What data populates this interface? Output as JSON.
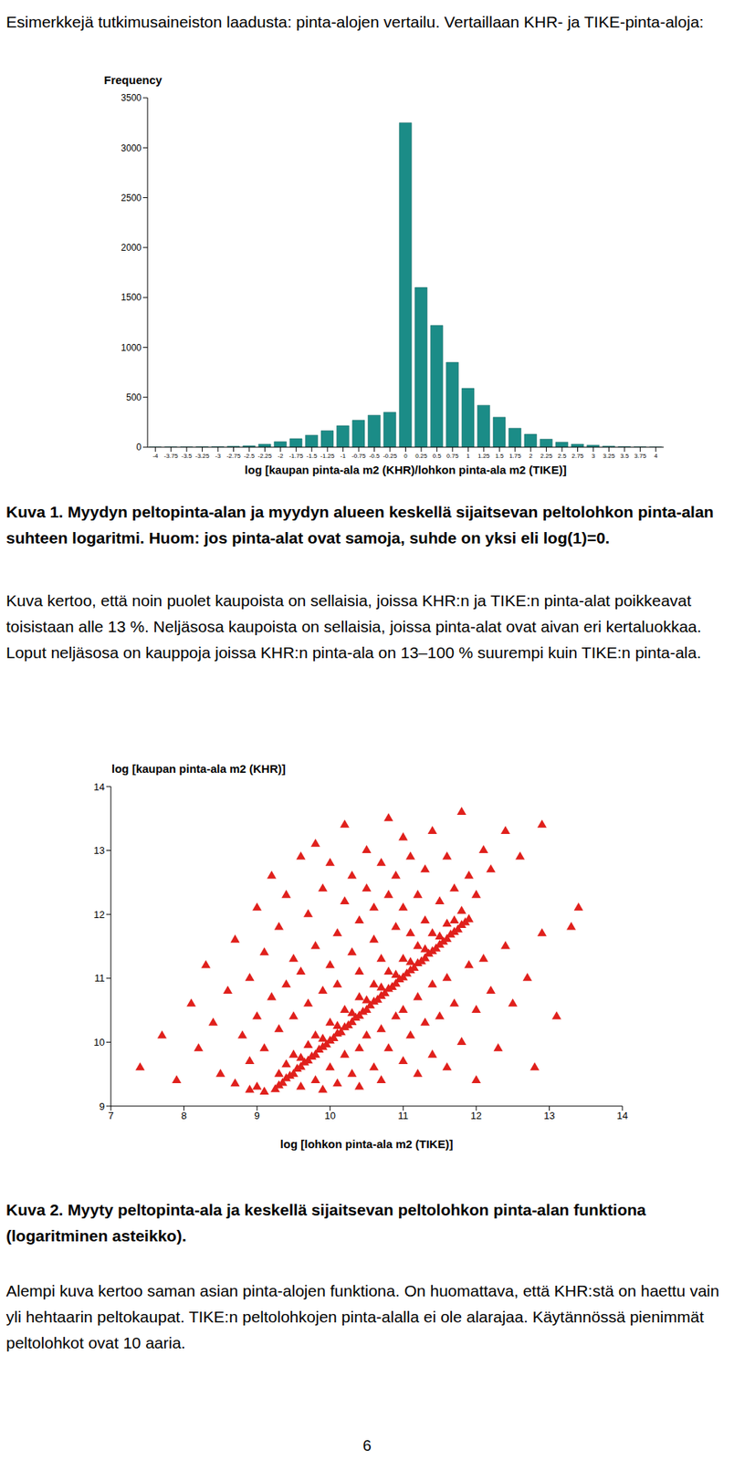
{
  "document": {
    "intro": "Esimerkkejä tutkimusaineiston laadusta: pinta-alojen vertailu. Vertaillaan KHR- ja TIKE-pinta-aloja:",
    "caption_1": "Kuva 1. Myydyn peltopinta-alan ja myydyn alueen keskellä sijaitsevan peltolohkon pinta-alan suhteen logaritmi. Huom: jos pinta-alat ovat samoja, suhde on yksi eli log(1)=0.",
    "paragraph_1": "Kuva kertoo, että noin puolet kaupoista on sellaisia, joissa KHR:n ja TIKE:n pinta-alat poikkeavat toisistaan alle 13 %. Neljäsosa kaupoista on sellaisia, joissa pinta-alat ovat aivan eri kertaluokkaa. Loput neljäsosa on kauppoja joissa KHR:n pinta-ala on 13–100 % suurempi kuin TIKE:n pinta-ala.",
    "caption_2": "Kuva 2. Myyty peltopinta-ala ja keskellä sijaitsevan peltolohkon pinta-alan funktiona (logaritminen asteikko).",
    "paragraph_2": "Alempi kuva kertoo saman asian pinta-alojen funktiona. On huomattava, että KHR:stä on haettu vain yli hehtaarin peltokaupat. TIKE:n peltolohkojen pinta-alalla ei ole alarajaa. Käytännössä pienimmät peltolohkot ovat 10 aaria.",
    "page_number": 6
  },
  "chart_data": [
    {
      "type": "histogram",
      "y_label": "Frequency",
      "x_label": "log [kaupan pinta-ala m2 (KHR)/lohkon pinta-ala m2 (TIKE)]",
      "bins": [
        -4.125,
        -3.875,
        -3.625,
        -3.375,
        -3.125,
        -2.875,
        -2.625,
        -2.375,
        -2.125,
        -1.875,
        -1.625,
        -1.375,
        -1.125,
        -0.875,
        -0.625,
        -0.375,
        -0.125,
        0.125,
        0.375,
        0.625,
        0.875,
        1.125,
        1.375,
        1.625,
        1.875,
        2.125,
        2.375,
        2.625,
        2.875,
        3.125,
        3.375,
        3.625,
        3.875,
        4.125
      ],
      "counts": [
        1,
        2,
        2,
        4,
        5,
        9,
        14,
        30,
        55,
        85,
        120,
        165,
        215,
        270,
        320,
        350,
        3250,
        1600,
        1220,
        850,
        590,
        420,
        300,
        190,
        130,
        80,
        50,
        30,
        20,
        10,
        6,
        3,
        1
      ],
      "color": "#1b8c87",
      "xlim": [
        -4.125,
        4.125
      ],
      "xticks": [
        -4,
        -3.75,
        -3.5,
        -3.25,
        -3,
        -2.75,
        -2.5,
        -2.25,
        -2,
        -1.75,
        -1.5,
        -1.25,
        -1,
        -0.75,
        -0.5,
        -0.25,
        0,
        0.25,
        0.5,
        0.75,
        1,
        1.25,
        1.5,
        1.75,
        2,
        2.25,
        2.5,
        2.75,
        3,
        3.25,
        3.5,
        3.75,
        4
      ],
      "ylim": [
        0,
        3500
      ],
      "yticks": [
        0,
        500,
        1000,
        1500,
        2000,
        2500,
        3000,
        3500
      ]
    },
    {
      "type": "scatter",
      "y_label": "log [kaupan pinta-ala m2 (KHR)]",
      "x_label": "log [lohkon pinta-ala m2 (TIKE)]",
      "color": "#e0201c",
      "marker": "triangle",
      "x": [
        9.25,
        9.3,
        9.35,
        9.4,
        9.45,
        9.5,
        9.55,
        9.6,
        9.65,
        9.7,
        9.75,
        9.8,
        9.85,
        9.9,
        9.95,
        10,
        10.05,
        10.1,
        10.15,
        10.2,
        10.25,
        10.3,
        10.35,
        10.4,
        10.45,
        10.5,
        10.55,
        10.6,
        10.65,
        10.7,
        10.75,
        10.8,
        10.85,
        10.9,
        10.95,
        11,
        11.05,
        11.1,
        11.15,
        11.2,
        11.25,
        11.3,
        11.35,
        11.4,
        11.45,
        11.5,
        11.55,
        11.6,
        11.65,
        11.7,
        11.75,
        11.8,
        11.85,
        11.9,
        9.3,
        9.4,
        9.5,
        9.6,
        9.7,
        9.8,
        9.9,
        10,
        10.1,
        10.2,
        10.3,
        10.4,
        10.5,
        10.6,
        10.7,
        10.8,
        10.9,
        11,
        11.1,
        11.2,
        11.3,
        11.4,
        11.5,
        11.6,
        11.7,
        11.8,
        7.4,
        7.7,
        7.9,
        8.1,
        8.2,
        8.3,
        8.4,
        8.5,
        8.6,
        8.7,
        8.8,
        8.9,
        8.9,
        9,
        9,
        9.1,
        9.1,
        9.2,
        9.2,
        9.3,
        9.3,
        9.4,
        9.4,
        9.5,
        9.5,
        9.6,
        9.6,
        9.7,
        9.7,
        9.8,
        9.8,
        9.9,
        9.9,
        10,
        10,
        10.1,
        10.1,
        10.2,
        10.2,
        10.3,
        10.3,
        10.4,
        10.4,
        10.5,
        10.5,
        10.6,
        10.6,
        10.7,
        10.7,
        10.8,
        10.8,
        10.9,
        10.9,
        11,
        11,
        11.1,
        11.1,
        11.2,
        11.3,
        11.3,
        11.4,
        11.5,
        11.6,
        11.7,
        11.8,
        11.9,
        12,
        12.1,
        12.2,
        12.4,
        12.6,
        12.9,
        13.4,
        13.3,
        9.6,
        9.8,
        9.9,
        10,
        10.1,
        10.2,
        10.3,
        10.4,
        10.4,
        10.5,
        10.6,
        10.7,
        10.7,
        10.8,
        10.9,
        11,
        11,
        11.1,
        11.2,
        11.2,
        11.3,
        11.4,
        11.4,
        11.5,
        11.6,
        11.6,
        11.7,
        11.8,
        11.9,
        12,
        12,
        12.1,
        12.2,
        12.3,
        12.4,
        12.5,
        12.7,
        12.9,
        12.8,
        13.1,
        8.9,
        9,
        9.1,
        8.7
      ],
      "values": [
        9.26,
        9.32,
        9.36,
        9.43,
        9.47,
        9.5,
        9.58,
        9.61,
        9.68,
        9.71,
        9.77,
        9.8,
        9.88,
        9.92,
        9.96,
        10.02,
        10.06,
        10.13,
        10.15,
        10.23,
        10.26,
        10.31,
        10.38,
        10.41,
        10.47,
        10.5,
        10.57,
        10.63,
        10.66,
        10.72,
        10.76,
        10.83,
        10.86,
        10.91,
        10.98,
        11.01,
        11.07,
        11.12,
        11.16,
        11.23,
        11.26,
        11.31,
        11.38,
        11.42,
        11.46,
        11.52,
        11.57,
        11.61,
        11.68,
        11.72,
        11.76,
        11.83,
        11.87,
        11.92,
        9.5,
        9.65,
        9.8,
        9.75,
        9.95,
        10.1,
        10.05,
        10.3,
        10.25,
        10.5,
        10.45,
        10.7,
        10.65,
        10.9,
        10.85,
        11.1,
        11.05,
        11.3,
        11.25,
        11.5,
        11.45,
        11.7,
        11.65,
        11.85,
        11.9,
        12.05,
        9.6,
        10.1,
        9.4,
        10.6,
        9.9,
        11.2,
        10.3,
        9.5,
        10.8,
        11.6,
        10.1,
        9.7,
        11,
        10.4,
        12.1,
        9.9,
        11.4,
        10.7,
        12.6,
        10.2,
        11.8,
        10.9,
        12.3,
        10.4,
        11.3,
        12.9,
        11.1,
        10.6,
        12,
        11.5,
        13.1,
        10.8,
        12.4,
        11.2,
        12.8,
        11.7,
        10.9,
        12.2,
        13.4,
        11.4,
        12.6,
        11.9,
        11.1,
        12.4,
        13,
        11.6,
        12.1,
        12.8,
        11.3,
        12.3,
        13.5,
        11.8,
        12.6,
        12.1,
        13.2,
        11.7,
        12.9,
        12.3,
        12.7,
        11.9,
        13.3,
        12.2,
        12.9,
        12.4,
        13.6,
        12.6,
        12.3,
        13,
        12.7,
        13.3,
        12.9,
        13.4,
        12.1,
        11.8,
        9.3,
        9.4,
        9.25,
        9.6,
        9.35,
        9.8,
        9.5,
        9.9,
        9.3,
        10.1,
        9.6,
        10.2,
        9.4,
        9.9,
        10.4,
        9.7,
        10.5,
        10.1,
        9.5,
        10.7,
        10.3,
        9.8,
        10.9,
        10.4,
        9.6,
        11,
        10.6,
        10,
        11.2,
        10.5,
        9.4,
        11.3,
        10.8,
        9.9,
        11.5,
        10.6,
        11,
        11.7,
        9.6,
        10.4,
        9.25,
        9.3,
        9.22,
        9.35
      ],
      "xlim": [
        7,
        14
      ],
      "xticks": [
        7,
        8,
        9,
        10,
        11,
        12,
        13,
        14
      ],
      "ylim": [
        9,
        14
      ],
      "yticks": [
        9,
        10,
        11,
        12,
        13,
        14
      ]
    }
  ]
}
